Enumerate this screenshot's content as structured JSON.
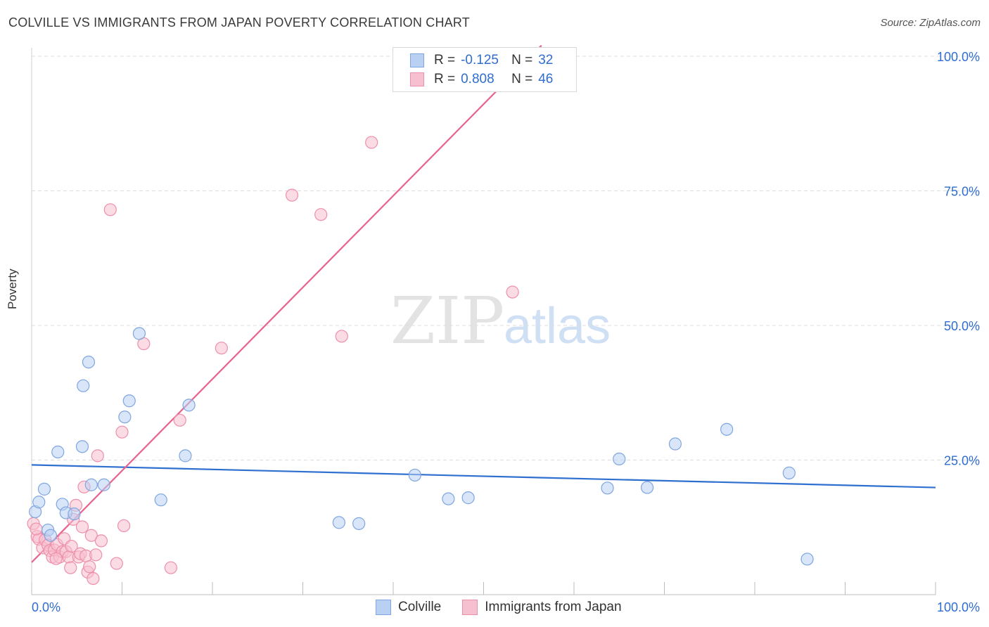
{
  "title": "COLVILLE VS IMMIGRANTS FROM JAPAN POVERTY CORRELATION CHART",
  "source": "Source: ZipAtlas.com",
  "watermark": {
    "zip": "ZIP",
    "atlas": "atlas"
  },
  "colors": {
    "blue_fill": "#b9d0f2",
    "blue_stroke": "#7ea6e0",
    "blue_line": "#2e6fd0",
    "pink_fill": "#f7c0d0",
    "pink_stroke": "#ee8faa",
    "pink_line": "#e8628c",
    "accent_text": "#2f6dd0"
  },
  "legend": {
    "rows": [
      {
        "r_label": "R =",
        "r_value": "-0.125",
        "n_label": "N =",
        "n_value": "32"
      },
      {
        "r_label": "R =",
        "r_value": "0.808",
        "n_label": "N =",
        "n_value": "46"
      }
    ]
  },
  "bottom_legend": [
    "Colville",
    "Immigrants from Japan"
  ],
  "chart_data": {
    "type": "scatter",
    "title": "COLVILLE VS IMMIGRANTS FROM JAPAN POVERTY CORRELATION CHART",
    "xlabel": "",
    "ylabel": "Poverty",
    "xlim": [
      0,
      100
    ],
    "ylim": [
      0,
      100
    ],
    "x_tick_labels": [
      "0.0%",
      "100.0%"
    ],
    "y_tick_labels": [
      "25.0%",
      "50.0%",
      "75.0%",
      "100.0%"
    ],
    "y_ticks": [
      25,
      50,
      75,
      100
    ],
    "grid": true,
    "series": [
      {
        "name": "Colville",
        "color": "#7ea6e0",
        "points": [
          [
            0.4,
            15.4
          ],
          [
            0.8,
            17.2
          ],
          [
            1.4,
            19.6
          ],
          [
            1.8,
            12.0
          ],
          [
            2.1,
            11.0
          ],
          [
            2.9,
            26.5
          ],
          [
            3.4,
            16.8
          ],
          [
            3.8,
            15.2
          ],
          [
            4.7,
            15.0
          ],
          [
            5.6,
            27.5
          ],
          [
            5.7,
            38.8
          ],
          [
            6.3,
            43.2
          ],
          [
            6.6,
            20.4
          ],
          [
            8.0,
            20.4
          ],
          [
            10.3,
            33.0
          ],
          [
            10.8,
            36.0
          ],
          [
            11.9,
            48.5
          ],
          [
            14.3,
            17.6
          ],
          [
            17.0,
            25.8
          ],
          [
            17.4,
            35.2
          ],
          [
            34.0,
            13.4
          ],
          [
            36.2,
            13.2
          ],
          [
            42.4,
            22.2
          ],
          [
            46.1,
            17.8
          ],
          [
            48.3,
            18.0
          ],
          [
            63.7,
            19.8
          ],
          [
            65.0,
            25.2
          ],
          [
            68.1,
            19.9
          ],
          [
            71.2,
            28.0
          ],
          [
            76.9,
            30.7
          ],
          [
            83.8,
            22.6
          ],
          [
            85.8,
            6.6
          ]
        ],
        "trend": {
          "x": [
            0,
            100
          ],
          "y": [
            24.1,
            19.9
          ]
        }
      },
      {
        "name": "Immigrants from Japan",
        "color": "#ee8faa",
        "points": [
          [
            0.2,
            13.2
          ],
          [
            0.6,
            10.8
          ],
          [
            0.8,
            10.3
          ],
          [
            1.2,
            8.7
          ],
          [
            1.5,
            10.2
          ],
          [
            1.8,
            9.2
          ],
          [
            2.0,
            8.2
          ],
          [
            2.3,
            7.0
          ],
          [
            2.5,
            8.3
          ],
          [
            2.8,
            9.3
          ],
          [
            3.1,
            7.0
          ],
          [
            3.4,
            8.0
          ],
          [
            3.6,
            10.4
          ],
          [
            3.8,
            8.0
          ],
          [
            4.1,
            7.0
          ],
          [
            4.3,
            5.0
          ],
          [
            4.4,
            9.0
          ],
          [
            4.6,
            14.0
          ],
          [
            4.9,
            16.6
          ],
          [
            5.2,
            7.0
          ],
          [
            5.4,
            7.6
          ],
          [
            5.6,
            12.6
          ],
          [
            5.8,
            20.0
          ],
          [
            6.0,
            7.2
          ],
          [
            6.2,
            4.2
          ],
          [
            6.4,
            5.2
          ],
          [
            6.6,
            11.0
          ],
          [
            6.8,
            3.0
          ],
          [
            7.1,
            7.4
          ],
          [
            7.3,
            25.8
          ],
          [
            7.7,
            10.0
          ],
          [
            9.4,
            5.8
          ],
          [
            10.0,
            30.2
          ],
          [
            10.2,
            12.8
          ],
          [
            12.4,
            46.6
          ],
          [
            15.4,
            5.0
          ],
          [
            16.4,
            32.4
          ],
          [
            21.0,
            45.8
          ],
          [
            8.7,
            71.5
          ],
          [
            28.8,
            74.2
          ],
          [
            32.0,
            70.6
          ],
          [
            34.3,
            48.0
          ],
          [
            53.2,
            56.2
          ],
          [
            37.6,
            84.0
          ],
          [
            0.5,
            12.2
          ],
          [
            2.7,
            6.7
          ]
        ],
        "trend": {
          "x": [
            0,
            56.4
          ],
          "y": [
            6.0,
            102.0
          ]
        }
      }
    ]
  }
}
